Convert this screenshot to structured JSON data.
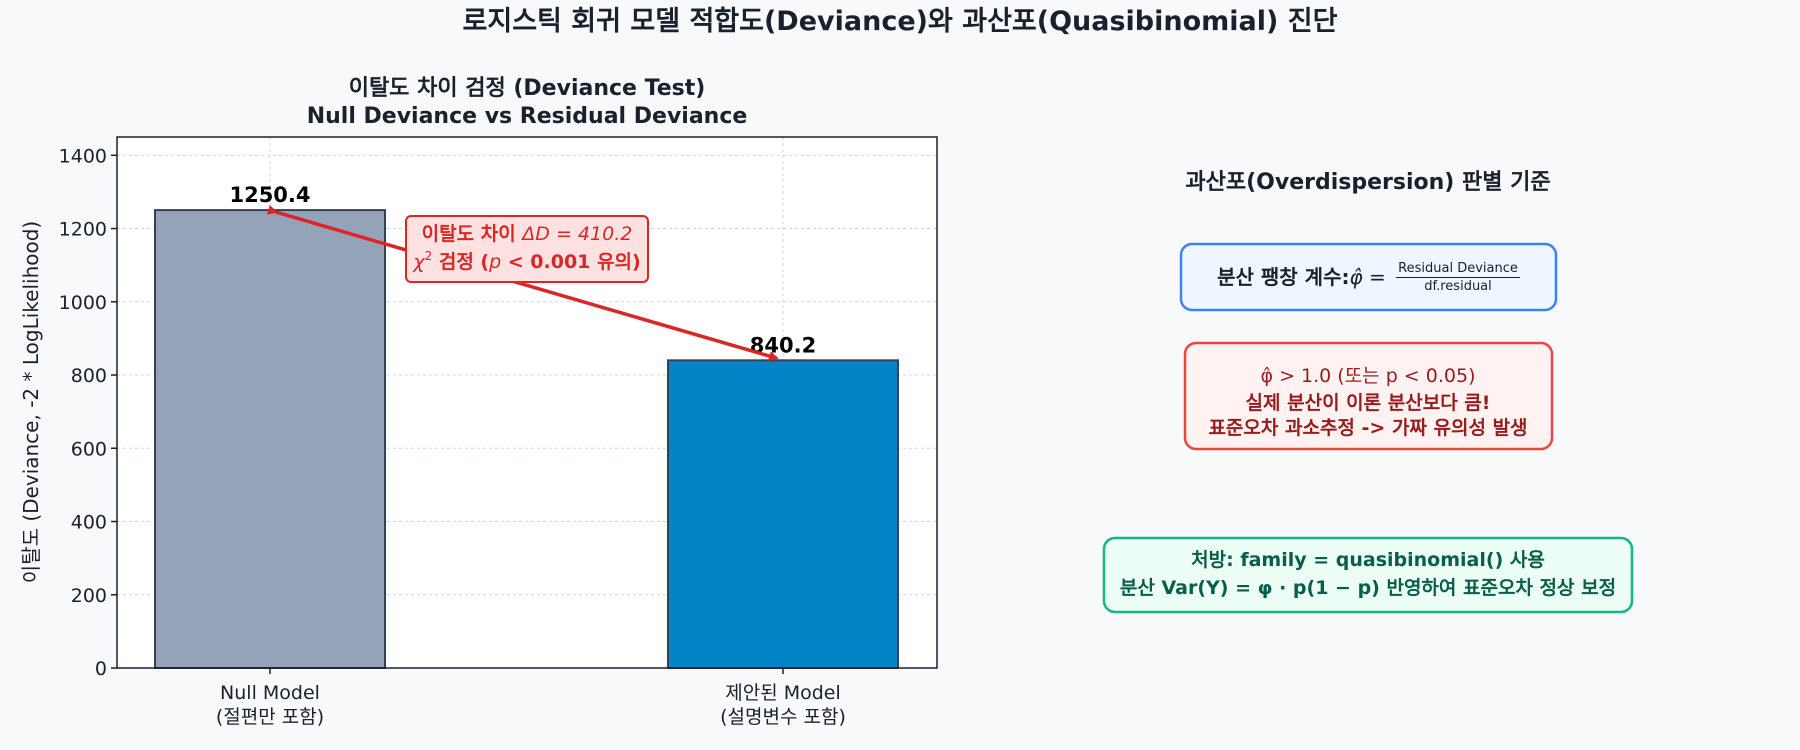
{
  "title": "로지스틱 회귀 모델 적합도(Deviance)와 과산포(Quasibinomial) 진단",
  "chart_data": {
    "type": "bar",
    "title_line1": "이탈도 차이 검정 (Deviance Test)",
    "title_line2": "Null Deviance vs Residual Deviance",
    "ylabel": "이탈도 (Deviance, -2 * LogLikelihood)",
    "ylim": [
      0,
      1450
    ],
    "yticks": [
      0,
      200,
      400,
      600,
      800,
      1000,
      1200,
      1400
    ],
    "grid": true,
    "categories": [
      {
        "line1": "Null Model",
        "line2": "(절편만 포함)"
      },
      {
        "line1": "제안된 Model",
        "line2": "(설명변수 포함)"
      }
    ],
    "values": [
      1250.4,
      840.2
    ],
    "value_labels": [
      "1250.4",
      "840.2"
    ],
    "colors": [
      "#94a3b8",
      "#0284c7"
    ],
    "edge_color": "#334155",
    "annotation": {
      "line1_prefix": "이탈도 차이 ",
      "line1_math": "ΔD = 410.2",
      "line2_math": "χ",
      "line2_sup": "2",
      "line2_mid": " 검정 (",
      "line2_p": "p",
      "line2_suffix": " < 0.001 유의)",
      "color": "#dc2626"
    }
  },
  "criteria": {
    "heading": "과산포(Overdispersion) 판별 기준",
    "dispersion_box": {
      "label": "분산 팽창 계수: ",
      "symbol": "φ̂",
      "equals": " = ",
      "numerator": "Residual Deviance",
      "denominator": "df.residual",
      "border": "#3b82f6",
      "fill": "#eff6ff"
    },
    "warning_box": {
      "line1": "φ̂ > 1.0 (또는 p < 0.05)",
      "line2": "실제 분산이 이론 분산보다 큼!",
      "line3": "표준오차 과소추정 -> 가짜 유의성 발생",
      "border": "#ef4444",
      "fill": "#fef2f2",
      "text_color": "#991b1b"
    },
    "remedy_box": {
      "line1": "처방: family = quasibinomial() 사용",
      "line2": "분산 Var(Y) = φ · p(1 − p) 반영하여 표준오차 정상 보정",
      "border": "#10b981",
      "fill": "#ecfdf5",
      "text_color": "#065f46"
    }
  }
}
